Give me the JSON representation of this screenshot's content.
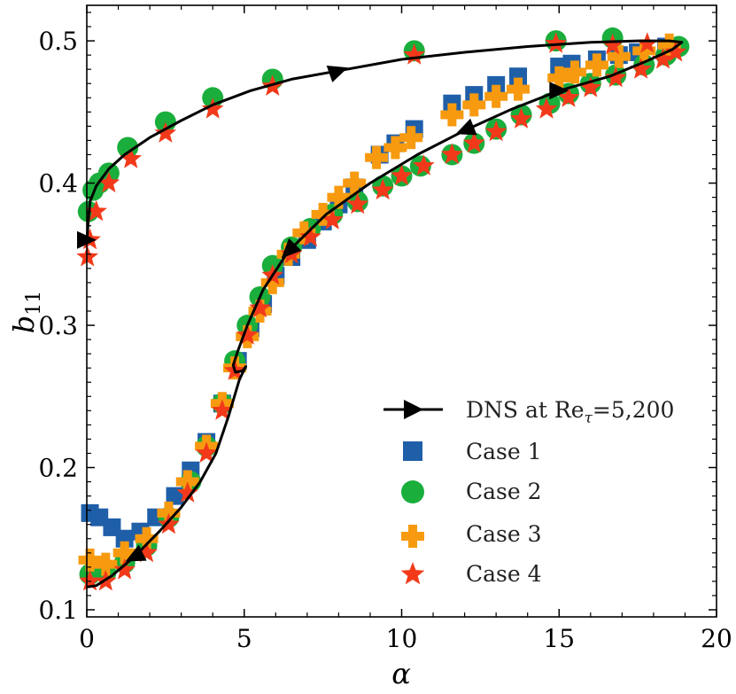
{
  "chart_data": {
    "type": "scatter",
    "xlabel": "α",
    "ylabel": "b",
    "ylabel_subscript": "11",
    "xlim": [
      0,
      20
    ],
    "ylim": [
      0.095,
      0.525
    ],
    "x_ticks": [
      0,
      5,
      10,
      15,
      20
    ],
    "y_ticks": [
      0.1,
      0.2,
      0.3,
      0.4,
      0.5
    ],
    "x_tick_labels": [
      "0",
      "5",
      "10",
      "15",
      "20"
    ],
    "y_tick_labels": [
      "0.1",
      "0.2",
      "0.3",
      "0.4",
      "0.5"
    ],
    "grid": false,
    "legend_position": "lower-right",
    "series": [
      {
        "name": "DNS at Re_τ=5,200",
        "legend_text": "DNS at Re",
        "legend_sub": "τ",
        "legend_tail": "=5,200",
        "type": "line",
        "color": "#000000",
        "x": [
          0.0,
          0.1,
          0.3,
          0.7,
          1.2,
          2.0,
          3.0,
          4.0,
          5.2,
          6.5,
          8.0,
          10.0,
          12.0,
          14.0,
          16.0,
          17.5,
          18.5,
          18.9,
          18.6,
          17.8,
          16.6,
          15.0,
          13.5,
          12.0,
          10.5,
          9.0,
          7.6,
          6.4,
          5.6,
          5.1,
          4.8,
          4.65,
          4.72,
          4.95,
          5.05,
          4.85,
          4.5,
          4.1,
          3.6,
          3.0,
          2.3,
          1.5,
          0.8,
          0.3,
          0.0
        ],
        "y": [
          0.36,
          0.387,
          0.398,
          0.41,
          0.42,
          0.432,
          0.444,
          0.455,
          0.465,
          0.473,
          0.479,
          0.487,
          0.492,
          0.496,
          0.499,
          0.5,
          0.5,
          0.499,
          0.494,
          0.486,
          0.475,
          0.465,
          0.452,
          0.437,
          0.42,
          0.4,
          0.378,
          0.352,
          0.325,
          0.3,
          0.282,
          0.272,
          0.267,
          0.268,
          0.271,
          0.262,
          0.236,
          0.21,
          0.19,
          0.172,
          0.155,
          0.137,
          0.124,
          0.117,
          0.116
        ],
        "arrows": [
          {
            "at": 0,
            "dir": [
              1,
              0
            ]
          },
          {
            "at": 10,
            "dir": [
              1,
              0.35
            ]
          },
          {
            "at": 21,
            "dir": [
              1,
              0
            ]
          },
          {
            "at": 27,
            "dir": [
              -0.7,
              -0.7
            ]
          },
          {
            "at": 23,
            "dir": [
              -1,
              -0.4
            ]
          },
          {
            "at": 41,
            "dir": [
              -1,
              -0.5
            ]
          }
        ]
      },
      {
        "name": "Case 1",
        "type": "scatter",
        "marker": "square",
        "color": "#1f5fa8",
        "x": [
          0.1,
          0.4,
          0.8,
          1.2,
          1.7,
          2.2,
          2.8,
          3.3,
          3.8,
          4.3,
          4.8,
          5.2,
          5.6,
          6.0,
          6.5,
          7.0,
          7.5,
          8.0,
          8.5,
          9.3,
          9.8,
          10.4,
          11.6,
          12.3,
          13.0,
          13.7,
          15.0,
          15.4,
          16.2,
          16.9,
          17.5,
          18.4
        ],
        "y": [
          0.168,
          0.165,
          0.158,
          0.15,
          0.155,
          0.165,
          0.18,
          0.198,
          0.218,
          0.245,
          0.275,
          0.298,
          0.315,
          0.335,
          0.348,
          0.36,
          0.373,
          0.385,
          0.397,
          0.42,
          0.428,
          0.438,
          0.456,
          0.462,
          0.469,
          0.475,
          0.482,
          0.484,
          0.487,
          0.49,
          0.492,
          0.496
        ]
      },
      {
        "name": "Case 2",
        "type": "scatter",
        "marker": "circle",
        "color": "#1aae3c",
        "x": [
          0.05,
          0.2,
          0.4,
          0.7,
          1.3,
          2.5,
          4.0,
          5.9,
          10.4,
          14.9,
          16.7,
          18.8,
          0.1,
          0.6,
          1.2,
          1.9,
          2.6,
          3.3,
          3.8,
          4.3,
          4.7,
          5.1,
          5.5,
          5.9,
          6.5,
          7.1,
          7.8,
          8.6,
          9.4,
          10.0,
          10.6,
          11.6,
          12.3,
          13.0,
          13.8,
          14.7,
          15.3,
          16.0,
          16.8,
          17.7,
          18.4
        ],
        "y": [
          0.38,
          0.395,
          0.4,
          0.407,
          0.425,
          0.443,
          0.46,
          0.473,
          0.493,
          0.5,
          0.502,
          0.496,
          0.125,
          0.126,
          0.133,
          0.145,
          0.165,
          0.19,
          0.215,
          0.245,
          0.275,
          0.3,
          0.32,
          0.342,
          0.355,
          0.368,
          0.378,
          0.387,
          0.398,
          0.405,
          0.412,
          0.42,
          0.428,
          0.438,
          0.448,
          0.456,
          0.463,
          0.47,
          0.476,
          0.483,
          0.49
        ]
      },
      {
        "name": "Case 3",
        "type": "scatter",
        "marker": "plus",
        "color": "#f79a0f",
        "x": [
          0.1,
          0.6,
          1.2,
          1.9,
          2.6,
          3.2,
          3.8,
          4.3,
          4.7,
          5.1,
          5.5,
          5.9,
          6.4,
          6.9,
          7.5,
          8.0,
          8.5,
          9.2,
          9.8,
          10.3,
          11.6,
          12.3,
          13.0,
          13.7,
          15.0,
          15.5,
          16.2,
          16.9,
          17.7,
          18.5
        ],
        "y": [
          0.135,
          0.132,
          0.14,
          0.15,
          0.168,
          0.19,
          0.215,
          0.245,
          0.27,
          0.292,
          0.31,
          0.33,
          0.35,
          0.365,
          0.378,
          0.39,
          0.4,
          0.418,
          0.425,
          0.432,
          0.448,
          0.455,
          0.461,
          0.466,
          0.474,
          0.478,
          0.483,
          0.489,
          0.493,
          0.497
        ]
      },
      {
        "name": "Case 4",
        "type": "scatter",
        "marker": "star",
        "color": "#f23a1a",
        "x": [
          0.02,
          0.1,
          0.3,
          0.7,
          1.4,
          2.5,
          4.0,
          5.9,
          10.4,
          14.9,
          16.7,
          17.8,
          18.7,
          0.1,
          0.6,
          1.2,
          1.9,
          2.6,
          3.2,
          3.8,
          4.3,
          4.7,
          5.1,
          5.5,
          5.9,
          6.5,
          7.1,
          7.8,
          8.6,
          9.4,
          10.0,
          10.7,
          11.6,
          12.3,
          13.0,
          13.8,
          14.6,
          15.3,
          16.0,
          16.8,
          17.6,
          18.3
        ],
        "y": [
          0.348,
          0.36,
          0.38,
          0.4,
          0.417,
          0.435,
          0.452,
          0.468,
          0.49,
          0.498,
          0.497,
          0.498,
          0.492,
          0.12,
          0.12,
          0.128,
          0.14,
          0.16,
          0.182,
          0.21,
          0.24,
          0.268,
          0.293,
          0.312,
          0.335,
          0.35,
          0.362,
          0.374,
          0.385,
          0.395,
          0.405,
          0.412,
          0.42,
          0.428,
          0.436,
          0.445,
          0.452,
          0.46,
          0.467,
          0.474,
          0.48,
          0.487
        ]
      }
    ]
  }
}
